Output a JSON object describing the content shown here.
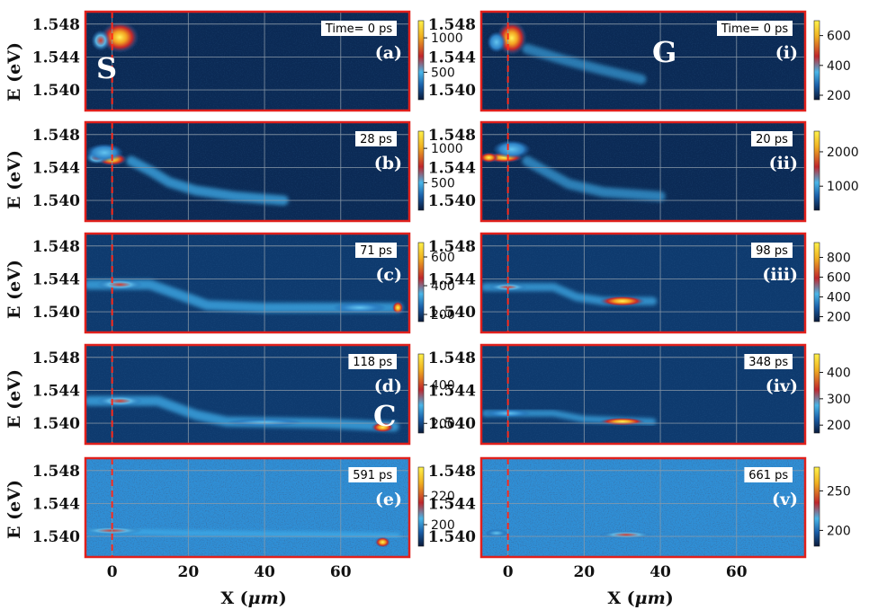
{
  "chart_data": {
    "type": "heatmap",
    "description_axes": {
      "ylabel": "E (eV)",
      "xlabel_prefix": "X (",
      "xlabel_unit": "μm",
      "xlabel_suffix": ")",
      "xlim": [
        -7,
        78
      ],
      "ylim": [
        1.5375,
        1.5495
      ],
      "yticks": [
        "1.548",
        "1.544",
        "1.540"
      ],
      "ytick_values": [
        1.548,
        1.544,
        1.54
      ],
      "xticks": [
        "0",
        "20",
        "40",
        "60"
      ],
      "xtick_values": [
        0,
        20,
        40,
        60
      ],
      "reference_line_x": 0,
      "grid": true
    },
    "panels": [
      {
        "id": "a",
        "col": 0,
        "row": 0,
        "time_label": "Time= 0 ps",
        "panel_label": "(a)",
        "big_letter": "S",
        "colorbar_ticks": [
          "1000",
          "500"
        ],
        "colorbar_range": [
          100,
          1250
        ],
        "colorbar_tick_values": [
          1000,
          500
        ],
        "background": "#0b2a55",
        "blobs": [
          {
            "x": 2,
            "e": 1.5464,
            "w": 5,
            "h": 0.0012,
            "i": 1.0
          },
          {
            "x": -3,
            "e": 1.546,
            "w": 2.5,
            "h": 0.0008,
            "i": 0.55
          }
        ],
        "traces": []
      },
      {
        "id": "b",
        "col": 0,
        "row": 1,
        "time_label": "28 ps",
        "panel_label": "(b)",
        "big_letter": "",
        "colorbar_ticks": [
          "1000",
          "500"
        ],
        "colorbar_range": [
          100,
          1250
        ],
        "colorbar_tick_values": [
          1000,
          500
        ],
        "background": "#0b2a55",
        "blobs": [
          {
            "x": 0,
            "e": 1.545,
            "w": 4,
            "h": 0.0005,
            "i": 0.95
          },
          {
            "x": -4,
            "e": 1.5452,
            "w": 3,
            "h": 0.0005,
            "i": 0.7
          },
          {
            "x": -2,
            "e": 1.5458,
            "w": 5,
            "h": 0.0007,
            "i": 0.3
          }
        ],
        "traces": [
          {
            "pts": [
              [
                5,
                1.5448
              ],
              [
                10,
                1.5436
              ],
              [
                15,
                1.5422
              ],
              [
                22,
                1.5412
              ],
              [
                32,
                1.5405
              ],
              [
                45,
                1.54
              ]
            ],
            "i": 0.32,
            "h": 0.0006
          }
        ]
      },
      {
        "id": "c",
        "col": 0,
        "row": 2,
        "time_label": "71 ps",
        "panel_label": "(c)",
        "big_letter": "",
        "colorbar_ticks": [
          "600",
          "400",
          "200"
        ],
        "colorbar_range": [
          150,
          700
        ],
        "colorbar_tick_values": [
          600,
          400,
          200
        ],
        "background": "#0e3a6e",
        "blobs": [
          {
            "x": 2,
            "e": 1.5433,
            "w": 6,
            "h": 0.0004,
            "i": 0.62
          },
          {
            "x": 75,
            "e": 1.5405,
            "w": 1.5,
            "h": 0.0005,
            "i": 1.0
          },
          {
            "x": 65,
            "e": 1.5405,
            "w": 7,
            "h": 0.0004,
            "i": 0.5
          }
        ],
        "traces": [
          {
            "pts": [
              [
                -6,
                1.5433
              ],
              [
                10,
                1.5433
              ],
              [
                18,
                1.542
              ],
              [
                25,
                1.5408
              ],
              [
                40,
                1.5405
              ],
              [
                75,
                1.5405
              ]
            ],
            "i": 0.34,
            "h": 0.0006
          }
        ]
      },
      {
        "id": "d",
        "col": 0,
        "row": 3,
        "time_label": "118 ps",
        "panel_label": "(d)",
        "big_letter": "C",
        "colorbar_ticks": [
          "400",
          "200"
        ],
        "colorbar_range": [
          150,
          560
        ],
        "colorbar_tick_values": [
          400,
          200
        ],
        "background": "#0e3a6e",
        "blobs": [
          {
            "x": 2,
            "e": 1.5427,
            "w": 6,
            "h": 0.0004,
            "i": 0.6
          },
          {
            "x": 71,
            "e": 1.5395,
            "w": 3,
            "h": 0.0004,
            "i": 1.0
          },
          {
            "x": 40,
            "e": 1.5401,
            "w": 10,
            "h": 0.0003,
            "i": 0.45
          }
        ],
        "traces": [
          {
            "pts": [
              [
                -6,
                1.5427
              ],
              [
                12,
                1.5427
              ],
              [
                22,
                1.541
              ],
              [
                30,
                1.5402
              ],
              [
                55,
                1.54
              ],
              [
                74,
                1.5396
              ]
            ],
            "i": 0.34,
            "h": 0.0006
          }
        ]
      },
      {
        "id": "e",
        "col": 0,
        "row": 4,
        "time_label": "591 ps",
        "panel_label": "(e)",
        "big_letter": "",
        "colorbar_ticks": [
          "220",
          "200"
        ],
        "colorbar_range": [
          185,
          240
        ],
        "colorbar_tick_values": [
          220,
          200
        ],
        "background": "#2f8fd6",
        "noise": true,
        "blobs": [
          {
            "x": 0,
            "e": 1.5407,
            "w": 8,
            "h": 0.0003,
            "i": 0.75
          },
          {
            "x": 71,
            "e": 1.5393,
            "w": 2,
            "h": 0.0004,
            "i": 0.95
          }
        ],
        "traces": [
          {
            "pts": [
              [
                -6,
                1.5407
              ],
              [
                20,
                1.5404
              ],
              [
                60,
                1.5402
              ],
              [
                75,
                1.5401
              ]
            ],
            "i": 0.5,
            "h": 0.0003
          }
        ]
      },
      {
        "id": "i",
        "col": 1,
        "row": 0,
        "time_label": "Time= 0 ps",
        "panel_label": "(i)",
        "big_letter": "G",
        "colorbar_ticks": [
          "600",
          "400",
          "200"
        ],
        "colorbar_range": [
          170,
          700
        ],
        "colorbar_tick_values": [
          600,
          400,
          200
        ],
        "background": "#0b2a55",
        "blobs": [
          {
            "x": 1,
            "e": 1.5463,
            "w": 4,
            "h": 0.0013,
            "i": 1.0
          },
          {
            "x": -3,
            "e": 1.5458,
            "w": 2.5,
            "h": 0.0008,
            "i": 0.5
          }
        ],
        "traces": [
          {
            "pts": [
              [
                5,
                1.545
              ],
              [
                15,
                1.5436
              ],
              [
                25,
                1.5424
              ],
              [
                35,
                1.5413
              ]
            ],
            "i": 0.18,
            "h": 0.0006
          }
        ]
      },
      {
        "id": "ii",
        "col": 1,
        "row": 1,
        "time_label": "20 ps",
        "panel_label": "(ii)",
        "big_letter": "",
        "colorbar_ticks": [
          "2000",
          "1000"
        ],
        "colorbar_range": [
          300,
          2600
        ],
        "colorbar_tick_values": [
          2000,
          1000
        ],
        "background": "#0b2a55",
        "blobs": [
          {
            "x": -1,
            "e": 1.5452,
            "w": 5,
            "h": 0.0004,
            "i": 1.0
          },
          {
            "x": -5,
            "e": 1.5452,
            "w": 2.5,
            "h": 0.0004,
            "i": 0.85
          },
          {
            "x": 1,
            "e": 1.5462,
            "w": 5,
            "h": 0.0007,
            "i": 0.5
          }
        ],
        "traces": [
          {
            "pts": [
              [
                5,
                1.5448
              ],
              [
                10,
                1.5435
              ],
              [
                16,
                1.542
              ],
              [
                25,
                1.541
              ],
              [
                40,
                1.5405
              ]
            ],
            "i": 0.22,
            "h": 0.0006
          }
        ]
      },
      {
        "id": "iii",
        "col": 1,
        "row": 2,
        "time_label": "98 ps",
        "panel_label": "(iii)",
        "big_letter": "",
        "colorbar_ticks": [
          "800",
          "600",
          "400",
          "200"
        ],
        "colorbar_range": [
          150,
          950
        ],
        "colorbar_tick_values": [
          800,
          600,
          400,
          200
        ],
        "background": "#0e3a6e",
        "blobs": [
          {
            "x": 0,
            "e": 1.543,
            "w": 5,
            "h": 0.0003,
            "i": 0.55
          },
          {
            "x": 30,
            "e": 1.5413,
            "w": 6,
            "h": 0.0004,
            "i": 1.0
          }
        ],
        "traces": [
          {
            "pts": [
              [
                -6,
                1.543
              ],
              [
                12,
                1.543
              ],
              [
                18,
                1.5418
              ],
              [
                25,
                1.5413
              ],
              [
                38,
                1.5413
              ]
            ],
            "i": 0.3,
            "h": 0.0005
          }
        ]
      },
      {
        "id": "iv",
        "col": 1,
        "row": 3,
        "time_label": "348 ps",
        "panel_label": "(iv)",
        "big_letter": "",
        "colorbar_ticks": [
          "400",
          "300",
          "200"
        ],
        "colorbar_range": [
          170,
          470
        ],
        "colorbar_tick_values": [
          400,
          300,
          200
        ],
        "background": "#0e3a6e",
        "blobs": [
          {
            "x": 30,
            "e": 1.5402,
            "w": 6,
            "h": 0.0003,
            "i": 1.0
          },
          {
            "x": 0,
            "e": 1.5412,
            "w": 6,
            "h": 0.0003,
            "i": 0.42
          }
        ],
        "traces": [
          {
            "pts": [
              [
                -6,
                1.5412
              ],
              [
                12,
                1.5412
              ],
              [
                20,
                1.5405
              ],
              [
                38,
                1.5402
              ]
            ],
            "i": 0.3,
            "h": 0.0004
          }
        ]
      },
      {
        "id": "v",
        "col": 1,
        "row": 4,
        "time_label": "661 ps",
        "panel_label": "(v)",
        "big_letter": "",
        "colorbar_ticks": [
          "250",
          "200"
        ],
        "colorbar_range": [
          180,
          280
        ],
        "colorbar_tick_values": [
          250,
          200
        ],
        "background": "#2f8fd6",
        "noise": true,
        "blobs": [
          {
            "x": 31,
            "e": 1.5402,
            "w": 7,
            "h": 0.0003,
            "i": 0.8
          },
          {
            "x": -3,
            "e": 1.5404,
            "w": 3,
            "h": 0.0003,
            "i": 0.5
          }
        ],
        "traces": []
      }
    ]
  }
}
